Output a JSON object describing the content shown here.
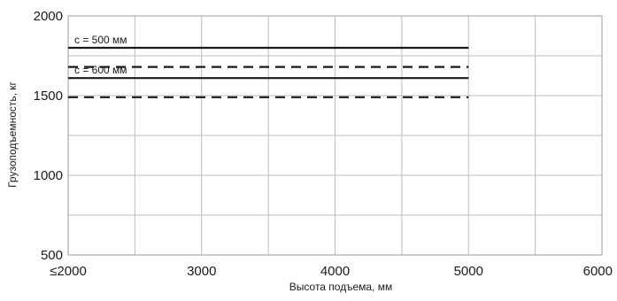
{
  "chart_data": {
    "type": "line",
    "xlabel": "Высота подъема, мм",
    "ylabel": "Грузоподъемность, кг",
    "xlim": [
      2000,
      6000
    ],
    "ylim": [
      500,
      2000
    ],
    "x_tick_labels": [
      "≤2000",
      "3000",
      "4000",
      "5000",
      "6000"
    ],
    "x_ticks": [
      2000,
      3000,
      4000,
      5000,
      6000
    ],
    "y_ticks": [
      500,
      1000,
      1500,
      2000
    ],
    "y_tick_labels": [
      "500",
      "1000",
      "1500",
      "2000"
    ],
    "grid": true,
    "series": [
      {
        "name": "c = 500 мм",
        "style": "solid",
        "color": "#1a1a1a",
        "x": [
          2000,
          5000
        ],
        "y": [
          1800,
          1800
        ]
      },
      {
        "style": "dashed",
        "color": "#1a1a1a",
        "x": [
          2000,
          5000
        ],
        "y": [
          1680,
          1680
        ]
      },
      {
        "name": "c = 600 мм",
        "style": "solid",
        "color": "#1a1a1a",
        "x": [
          2000,
          5000
        ],
        "y": [
          1610,
          1610
        ]
      },
      {
        "style": "dashed",
        "color": "#1a1a1a",
        "x": [
          2000,
          5000
        ],
        "y": [
          1490,
          1490
        ]
      }
    ],
    "annotations": [
      {
        "text": "c = 500 мм",
        "x": 2000,
        "y": 1800
      },
      {
        "text": "c = 600 мм",
        "x": 2000,
        "y": 1610
      }
    ]
  }
}
